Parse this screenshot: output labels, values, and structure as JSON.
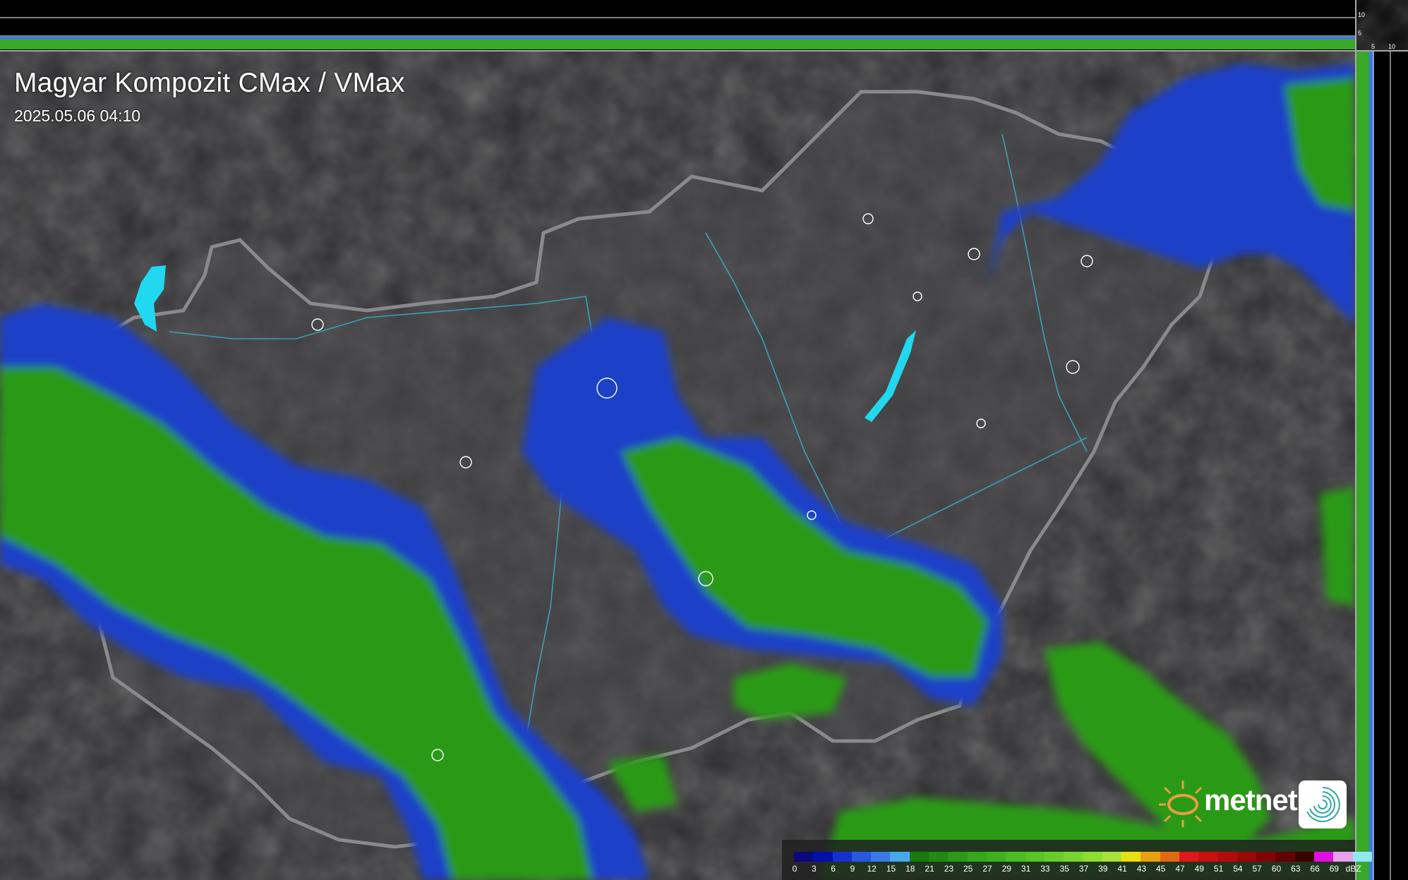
{
  "header": {
    "title": "Magyar Kompozit CMax / VMax",
    "timestamp": "2025.05.06 04:10"
  },
  "side_profile_axes": {
    "top_ticks": [
      "10",
      "5"
    ],
    "right_ticks": [
      "5",
      "10"
    ]
  },
  "legend": {
    "unit": "dBZ",
    "labels": [
      "0",
      "3",
      "6",
      "9",
      "12",
      "15",
      "18",
      "21",
      "23",
      "25",
      "27",
      "29",
      "31",
      "33",
      "35",
      "37",
      "39",
      "41",
      "43",
      "45",
      "47",
      "49",
      "51",
      "54",
      "57",
      "60",
      "63",
      "66",
      "69"
    ],
    "colors": [
      "#0a0a78",
      "#0010a8",
      "#1530d0",
      "#2858e0",
      "#3a7ae8",
      "#48a8ec",
      "#1a7a10",
      "#218a14",
      "#2a9a18",
      "#34a81c",
      "#3eb020",
      "#4abc24",
      "#58c428",
      "#66cc2c",
      "#78d430",
      "#8cdc34",
      "#a8e040",
      "#e8e010",
      "#e8a010",
      "#e06a14",
      "#e01818",
      "#c81010",
      "#b00c0c",
      "#980808",
      "#800606",
      "#600404",
      "#380202",
      "#e010e0",
      "#e8a0e8",
      "#90e8f0"
    ]
  },
  "logo": {
    "brand": "metnet"
  },
  "colors": {
    "background": "#3a3a3c",
    "border": "#8a8a8c",
    "rivers": "#3aa0b8",
    "lakes": "#20d8f0",
    "cities": "#ffffff"
  }
}
